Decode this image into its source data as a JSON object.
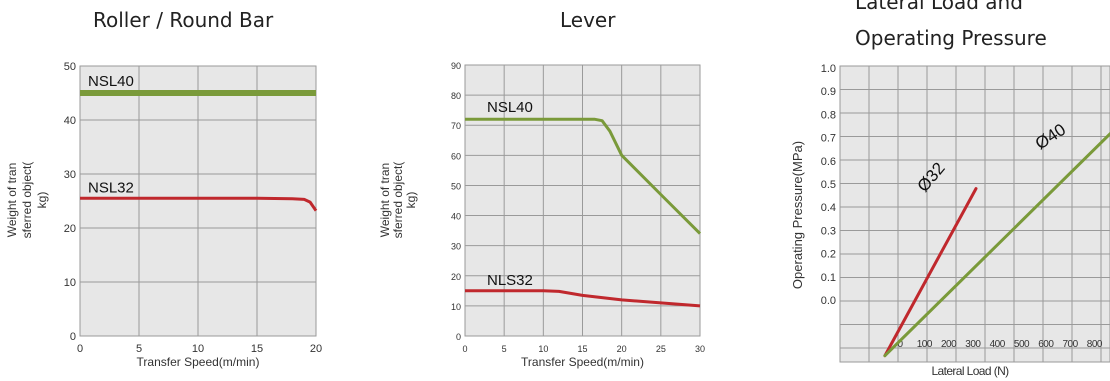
{
  "chart_data": [
    {
      "type": "line",
      "title": "Roller / Round Bar",
      "xlabel": "Transfer Speed(m/min)",
      "ylabel_lines": [
        "Weight of tran",
        "sferred object(",
        "kg)"
      ],
      "xlim": [
        0,
        20
      ],
      "ylim": [
        0,
        50
      ],
      "x_ticks": [
        0,
        5,
        10,
        15,
        20
      ],
      "y_ticks": [
        0,
        10,
        20,
        30,
        40,
        50
      ],
      "grid": true,
      "series": [
        {
          "name": "NSL40",
          "color": "#7a9a3a",
          "width": 6,
          "x": [
            0,
            20
          ],
          "y": [
            45,
            45
          ]
        },
        {
          "name": "NSL32",
          "color": "#c0282d",
          "width": 3,
          "x": [
            0,
            5,
            10,
            15,
            18,
            19,
            19.5,
            20
          ],
          "y": [
            25.5,
            25.5,
            25.5,
            25.5,
            25.4,
            25.3,
            24.8,
            23.2
          ]
        }
      ]
    },
    {
      "type": "line",
      "title": "Lever",
      "xlabel": "Transfer Speed(m/min)",
      "ylabel_lines": [
        "Weight of tran",
        "sferred object(",
        "kg)"
      ],
      "xlim": [
        0,
        30
      ],
      "ylim": [
        0,
        90
      ],
      "x_ticks": [
        0,
        5,
        10,
        15,
        20,
        25,
        30
      ],
      "y_ticks": [
        0,
        10,
        20,
        30,
        40,
        50,
        60,
        70,
        80,
        90
      ],
      "grid": true,
      "series": [
        {
          "name": "NSL40",
          "color": "#7a9a3a",
          "width": 3,
          "x": [
            0,
            10,
            15,
            16.5,
            17.5,
            18.5,
            20,
            25,
            30
          ],
          "y": [
            72,
            72,
            72,
            72,
            71.5,
            68,
            60,
            47,
            34
          ]
        },
        {
          "name": "NLS32",
          "color": "#c0282d",
          "width": 3,
          "x": [
            0,
            5,
            10,
            12,
            15,
            20,
            25,
            30
          ],
          "y": [
            15,
            15,
            15,
            14.8,
            13.5,
            12,
            11,
            10
          ]
        }
      ]
    },
    {
      "type": "line",
      "title_lines": [
        "Lateral Load and",
        "Operating Pressure"
      ],
      "xlabel": "Lateral Load (N)",
      "ylabel": "Operating  Pressure(MPa)",
      "x_tick_labels": [
        "0",
        "100",
        "200",
        "300",
        "400",
        "500",
        "600",
        "700",
        "800"
      ],
      "y_tick_labels": [
        "0.0",
        "0.1",
        "0.2",
        "0.3",
        "0.4",
        "0.5",
        "0.6",
        "0.7",
        "0.8",
        "0.9",
        "1.0"
      ],
      "grid": true,
      "series": [
        {
          "name": "Ø32",
          "color": "#c0282d",
          "width": 3,
          "x": [
            -50,
            325
          ],
          "y": [
            -0.24,
            0.48
          ]
        },
        {
          "name": "Ø40",
          "color": "#7a9a3a",
          "width": 3,
          "x": [
            -50,
            900
          ],
          "y": [
            -0.24,
            0.74
          ]
        }
      ]
    }
  ]
}
